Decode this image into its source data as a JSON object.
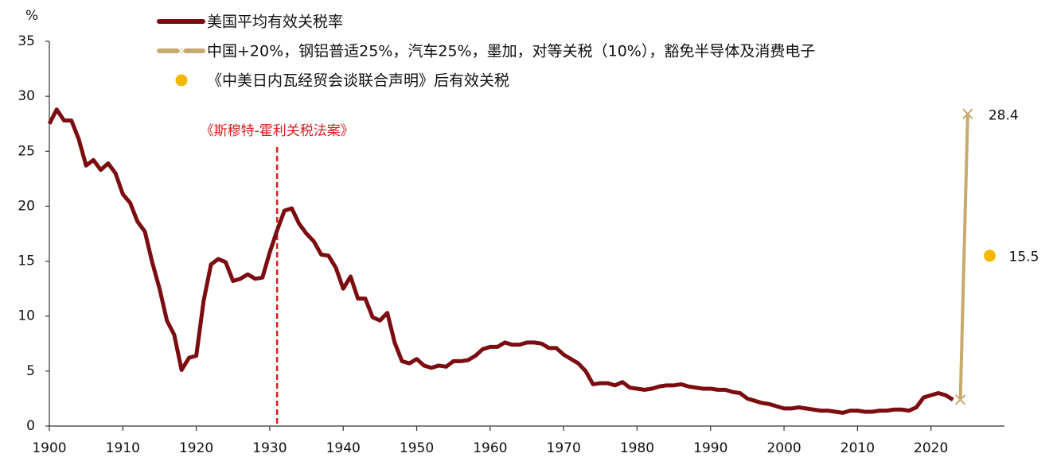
{
  "chart_data": {
    "type": "line",
    "y_unit": "%",
    "xlim": [
      1900,
      2030
    ],
    "xticks": [
      1900,
      1910,
      1920,
      1930,
      1940,
      1950,
      1960,
      1970,
      1980,
      1990,
      2000,
      2010,
      2020
    ],
    "ylim": [
      0,
      35
    ],
    "yticks": [
      0,
      5,
      10,
      15,
      20,
      25,
      30,
      35
    ],
    "legend": "top-left",
    "annotation": {
      "text": "《斯穆特-霍利关税法案》",
      "x": 1931,
      "color": "#d42020",
      "style": "dashed"
    },
    "series": [
      {
        "name": "美国平均有效关税率",
        "color": "#7b0c10",
        "kind": "line",
        "x": [
          1900,
          1901,
          1902,
          1903,
          1904,
          1905,
          1906,
          1907,
          1908,
          1909,
          1910,
          1911,
          1912,
          1913,
          1914,
          1915,
          1916,
          1917,
          1918,
          1919,
          1920,
          1921,
          1922,
          1923,
          1924,
          1925,
          1926,
          1927,
          1928,
          1929,
          1930,
          1931,
          1932,
          1933,
          1934,
          1935,
          1936,
          1937,
          1938,
          1939,
          1940,
          1941,
          1942,
          1943,
          1944,
          1945,
          1946,
          1947,
          1948,
          1949,
          1950,
          1951,
          1952,
          1953,
          1954,
          1955,
          1956,
          1957,
          1958,
          1959,
          1960,
          1961,
          1962,
          1963,
          1964,
          1965,
          1966,
          1967,
          1968,
          1969,
          1970,
          1971,
          1972,
          1973,
          1974,
          1975,
          1976,
          1977,
          1978,
          1979,
          1980,
          1981,
          1982,
          1983,
          1984,
          1985,
          1986,
          1987,
          1988,
          1989,
          1990,
          1991,
          1992,
          1993,
          1994,
          1995,
          1996,
          1997,
          1998,
          1999,
          2000,
          2001,
          2002,
          2003,
          2004,
          2005,
          2006,
          2007,
          2008,
          2009,
          2010,
          2011,
          2012,
          2013,
          2014,
          2015,
          2016,
          2017,
          2018,
          2019,
          2020,
          2021,
          2022,
          2023
        ],
        "values": [
          27.5,
          28.8,
          27.8,
          27.8,
          26.1,
          23.7,
          24.2,
          23.3,
          23.9,
          23.0,
          21.1,
          20.3,
          18.6,
          17.7,
          14.9,
          12.5,
          9.6,
          8.3,
          5.1,
          6.2,
          6.4,
          11.4,
          14.7,
          15.2,
          14.9,
          13.2,
          13.4,
          13.8,
          13.4,
          13.5,
          15.8,
          17.8,
          19.6,
          19.8,
          18.4,
          17.5,
          16.8,
          15.6,
          15.5,
          14.4,
          12.5,
          13.6,
          11.6,
          11.6,
          9.9,
          9.6,
          10.3,
          7.6,
          5.9,
          5.7,
          6.1,
          5.5,
          5.3,
          5.5,
          5.4,
          5.9,
          5.9,
          6.0,
          6.4,
          7.0,
          7.2,
          7.2,
          7.6,
          7.4,
          7.4,
          7.6,
          7.6,
          7.5,
          7.1,
          7.1,
          6.5,
          6.1,
          5.7,
          5.0,
          3.8,
          3.9,
          3.9,
          3.7,
          4.0,
          3.5,
          3.4,
          3.3,
          3.4,
          3.6,
          3.7,
          3.7,
          3.8,
          3.6,
          3.5,
          3.4,
          3.4,
          3.3,
          3.3,
          3.1,
          3.0,
          2.5,
          2.3,
          2.1,
          2.0,
          1.8,
          1.6,
          1.6,
          1.7,
          1.6,
          1.5,
          1.4,
          1.4,
          1.3,
          1.2,
          1.4,
          1.4,
          1.3,
          1.3,
          1.4,
          1.4,
          1.5,
          1.5,
          1.4,
          1.7,
          2.6,
          2.8,
          3.0,
          2.8,
          2.4
        ]
      },
      {
        "name": "中国+20%，钢铝普适25%，汽车25%，墨加，对等关税（10%），豁免半导体及消费电子",
        "color": "#c8a96e",
        "kind": "line-x",
        "x": [
          2024,
          2025
        ],
        "values": [
          2.4,
          28.4
        ]
      },
      {
        "name": "《中美日内瓦经贸会谈联合声明》后有效关税",
        "color": "#f5b800",
        "kind": "point",
        "x": [
          2028
        ],
        "values": [
          15.5
        ]
      }
    ]
  }
}
